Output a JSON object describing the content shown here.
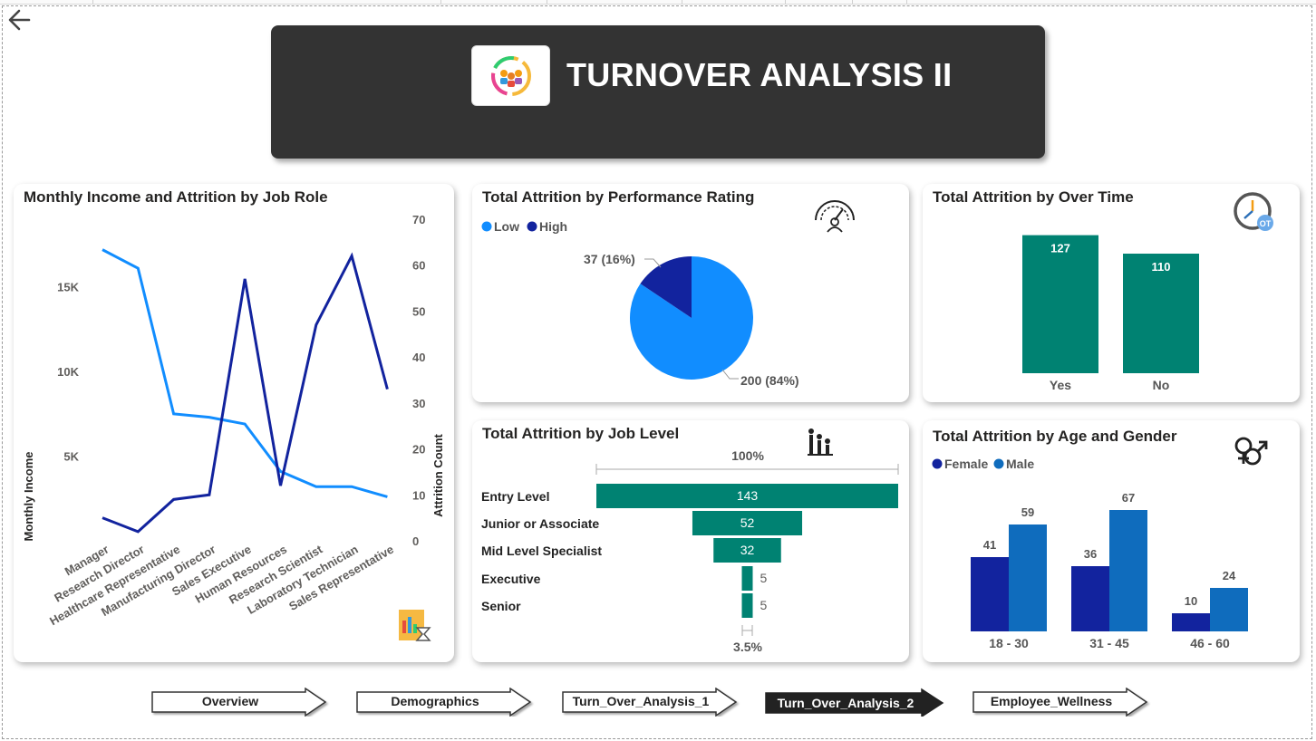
{
  "header": {
    "title": "TURNOVER ANALYSIS II",
    "logo_icon": "team-cycle-icon"
  },
  "colors": {
    "dark": "#333333",
    "teal": "#008272",
    "light_blue": "#118DFF",
    "dark_blue": "#12239E",
    "male_blue": "#0F6CBD"
  },
  "income_chart": {
    "title": "Monthly Income and Attrition by Job Role",
    "ylabel_left": "Monthly Income",
    "ylabel_right": "Attrition Count",
    "left_ticks": [
      "5K",
      "10K",
      "15K"
    ],
    "right_ticks": [
      "0",
      "10",
      "20",
      "30",
      "40",
      "50",
      "60",
      "70"
    ],
    "categories": [
      "Manager",
      "Research Director",
      "Healthcare Representative",
      "Manufacturing Director",
      "Sales Executive",
      "Human Resources",
      "Research Scientist",
      "Laboratory Technician",
      "Sales Representative"
    ],
    "icon": "report-hourglass-icon"
  },
  "performance_chart": {
    "title": "Total Attrition by Performance Rating",
    "legend": [
      "Low",
      "High"
    ],
    "labels": {
      "high": "37 (16%)",
      "low": "200 (84%)"
    },
    "icon": "speedometer-icon"
  },
  "overtime_chart": {
    "title": "Total Attrition by Over Time",
    "icon": "overtime-clock-icon",
    "value_labels": [
      "127",
      "110"
    ]
  },
  "joblevel_chart": {
    "title": "Total Attrition by Job Level",
    "top_label": "100%",
    "bottom_label": "3.5%",
    "icon": "org-hierarchy-icon",
    "value_labels": [
      "143",
      "52",
      "32",
      "5",
      "5"
    ]
  },
  "agegender_chart": {
    "title": "Total Attrition by Age and Gender",
    "legend": [
      "Female",
      "Male"
    ],
    "icon": "gender-icon",
    "value_labels": [
      "41",
      "59",
      "36",
      "67",
      "10",
      "24"
    ]
  },
  "nav": {
    "buttons": [
      "Overview",
      "Demographics",
      "Turn_Over_Analysis_1",
      "Turn_Over_Analysis_2",
      "Employee_Wellness"
    ],
    "active": "Turn_Over_Analysis_2"
  },
  "chart_data": [
    {
      "type": "line",
      "title": "Monthly Income and Attrition by Job Role",
      "categories": [
        "Manager",
        "Research Director",
        "Healthcare Representative",
        "Manufacturing Director",
        "Sales Executive",
        "Human Resources",
        "Research Scientist",
        "Laboratory Technician",
        "Sales Representative"
      ],
      "series": [
        {
          "values": [
            17200,
            16100,
            7500,
            7300,
            6900,
            4100,
            3200,
            3200,
            2600
          ],
          "axis": "left"
        },
        {
          "values": [
            5,
            2,
            9,
            10,
            57,
            12,
            47,
            62,
            33
          ],
          "axis": "right"
        }
      ],
      "ylabel": "Monthly Income",
      "y2label": "Attrition Count",
      "ylim": [
        0,
        19000
      ],
      "y2lim": [
        0,
        70
      ]
    },
    {
      "type": "pie",
      "title": "Total Attrition by Performance Rating",
      "categories": [
        "Low",
        "High"
      ],
      "values": [
        200,
        37
      ]
    },
    {
      "type": "bar",
      "title": "Total Attrition by Over Time",
      "categories": [
        "Yes",
        "No"
      ],
      "values": [
        127,
        110
      ]
    },
    {
      "type": "bar",
      "title": "Total Attrition by Job Level",
      "orientation": "funnel",
      "categories": [
        "Entry Level",
        "Junior or Associate",
        "Mid Level Specialist",
        "Executive",
        "Senior"
      ],
      "values": [
        143,
        52,
        32,
        5,
        5
      ]
    },
    {
      "type": "bar",
      "title": "Total Attrition by Age and Gender",
      "categories": [
        "18 - 30",
        "31 - 45",
        "46 - 60"
      ],
      "series": [
        {
          "name": "Female",
          "values": [
            41,
            36,
            10
          ]
        },
        {
          "name": "Male",
          "values": [
            59,
            67,
            24
          ]
        }
      ]
    }
  ]
}
